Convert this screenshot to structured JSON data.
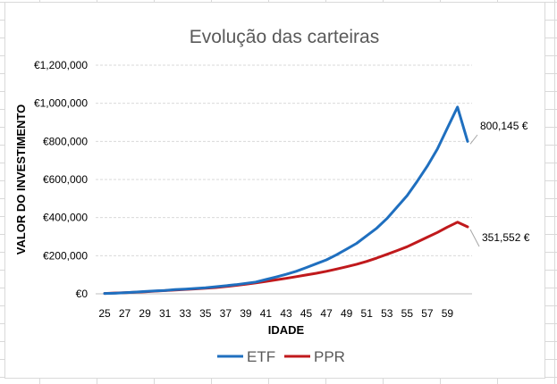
{
  "chart_data": {
    "type": "line",
    "title": "Evolução das carteiras",
    "xlabel": "IDADE",
    "ylabel": "VALOR DO INVESTIMENTO",
    "x": [
      25,
      26,
      27,
      28,
      29,
      30,
      31,
      32,
      33,
      34,
      35,
      36,
      37,
      38,
      39,
      40,
      41,
      42,
      43,
      44,
      45,
      46,
      47,
      48,
      49,
      50,
      51,
      52,
      53,
      54,
      55,
      56,
      57,
      58,
      59,
      60,
      61
    ],
    "x_tick_labels": [
      "25",
      "27",
      "29",
      "31",
      "33",
      "35",
      "37",
      "39",
      "41",
      "43",
      "45",
      "47",
      "49",
      "51",
      "53",
      "55",
      "57",
      "59"
    ],
    "ylim": [
      0,
      1200000
    ],
    "y_tick_labels": [
      "€0",
      "€200,000",
      "€400,000",
      "€600,000",
      "€800,000",
      "€1,000,000",
      "€1,200,000"
    ],
    "series": [
      {
        "name": "ETF",
        "color": "#1f6fbf",
        "values": [
          2000,
          3000,
          6000,
          9000,
          12000,
          15000,
          18000,
          22000,
          25000,
          28000,
          32000,
          37000,
          42000,
          48000,
          55000,
          62000,
          75000,
          88000,
          102000,
          118000,
          138000,
          158000,
          178000,
          205000,
          235000,
          265000,
          305000,
          345000,
          395000,
          455000,
          515000,
          590000,
          670000,
          760000,
          870000,
          980000,
          800145
        ]
      },
      {
        "name": "PPR",
        "color": "#c0191c",
        "values": [
          2000,
          4000,
          6000,
          8000,
          11000,
          14000,
          17000,
          20000,
          23000,
          26000,
          29000,
          33000,
          38000,
          44000,
          50000,
          57000,
          65000,
          73000,
          81000,
          90000,
          99000,
          108000,
          118000,
          130000,
          142000,
          155000,
          170000,
          188000,
          207000,
          227000,
          247000,
          272000,
          297000,
          322000,
          350000,
          376000,
          351552
        ]
      }
    ],
    "annotations": [
      {
        "series": "ETF",
        "text": "800,145 €"
      },
      {
        "series": "PPR",
        "text": "351,552 €"
      }
    ],
    "legend": [
      "ETF",
      "PPR"
    ],
    "legend_position": "bottom",
    "grid": true
  }
}
